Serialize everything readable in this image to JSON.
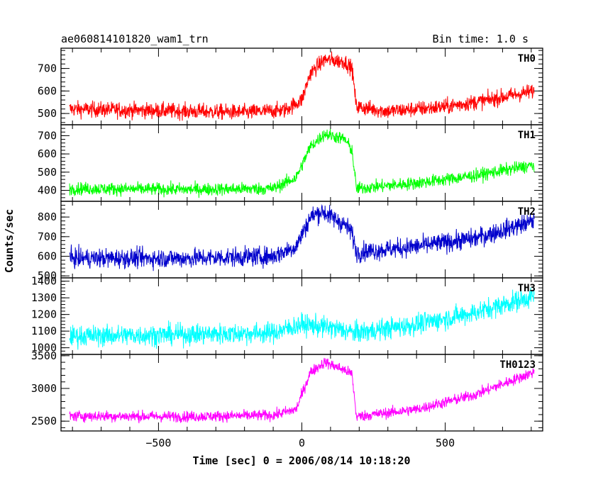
{
  "chart_data": {
    "type": "line",
    "title": "ae060814101820_wam1_trn",
    "bin_time_label": "Bin time: 1.0 s",
    "xlabel": "Time [sec] 0 = 2006/08/14 10:18:20",
    "ylabel": "Counts/sec",
    "xlim": [
      -840,
      840
    ],
    "x_ticks": [
      -500,
      0,
      500
    ],
    "x_tick_labels": [
      "−500",
      "0",
      "500"
    ],
    "grid": false,
    "panels": [
      {
        "name": "TH0",
        "color": "#ff0000",
        "ylim": [
          450,
          790
        ],
        "y_ticks": [
          500,
          600,
          700
        ],
        "noise": 25,
        "series": [
          {
            "x": -810,
            "y": 520
          },
          {
            "x": -600,
            "y": 515
          },
          {
            "x": -400,
            "y": 510
          },
          {
            "x": -200,
            "y": 505
          },
          {
            "x": -60,
            "y": 515
          },
          {
            "x": 0,
            "y": 560
          },
          {
            "x": 30,
            "y": 680
          },
          {
            "x": 80,
            "y": 740
          },
          {
            "x": 150,
            "y": 730
          },
          {
            "x": 175,
            "y": 700
          },
          {
            "x": 190,
            "y": 530
          },
          {
            "x": 300,
            "y": 510
          },
          {
            "x": 500,
            "y": 530
          },
          {
            "x": 650,
            "y": 560
          },
          {
            "x": 810,
            "y": 600
          }
        ]
      },
      {
        "name": "TH1",
        "color": "#00ff00",
        "ylim": [
          340,
          760
        ],
        "y_ticks": [
          400,
          500,
          600,
          700
        ],
        "noise": 25,
        "series": [
          {
            "x": -810,
            "y": 410
          },
          {
            "x": -400,
            "y": 405
          },
          {
            "x": -100,
            "y": 410
          },
          {
            "x": -20,
            "y": 470
          },
          {
            "x": 30,
            "y": 640
          },
          {
            "x": 80,
            "y": 710
          },
          {
            "x": 150,
            "y": 680
          },
          {
            "x": 175,
            "y": 620
          },
          {
            "x": 190,
            "y": 410
          },
          {
            "x": 400,
            "y": 440
          },
          {
            "x": 600,
            "y": 480
          },
          {
            "x": 810,
            "y": 540
          }
        ]
      },
      {
        "name": "TH2",
        "color": "#0000cc",
        "ylim": [
          490,
          880
        ],
        "y_ticks": [
          500,
          600,
          700,
          800
        ],
        "noise": 35,
        "series": [
          {
            "x": -810,
            "y": 590
          },
          {
            "x": -400,
            "y": 590
          },
          {
            "x": -100,
            "y": 600
          },
          {
            "x": -20,
            "y": 650
          },
          {
            "x": 30,
            "y": 800
          },
          {
            "x": 70,
            "y": 830
          },
          {
            "x": 150,
            "y": 760
          },
          {
            "x": 175,
            "y": 720
          },
          {
            "x": 190,
            "y": 620
          },
          {
            "x": 400,
            "y": 650
          },
          {
            "x": 600,
            "y": 690
          },
          {
            "x": 810,
            "y": 780
          }
        ]
      },
      {
        "name": "TH3",
        "color": "#00ffff",
        "ylim": [
          960,
          1420
        ],
        "y_ticks": [
          1000,
          1100,
          1200,
          1300,
          1400
        ],
        "noise": 45,
        "series": [
          {
            "x": -810,
            "y": 1070
          },
          {
            "x": -400,
            "y": 1080
          },
          {
            "x": -100,
            "y": 1090
          },
          {
            "x": 0,
            "y": 1140
          },
          {
            "x": 100,
            "y": 1120
          },
          {
            "x": 190,
            "y": 1090
          },
          {
            "x": 400,
            "y": 1140
          },
          {
            "x": 600,
            "y": 1210
          },
          {
            "x": 810,
            "y": 1310
          }
        ]
      },
      {
        "name": "TH0123",
        "color": "#ff00ff",
        "ylim": [
          2350,
          3520
        ],
        "y_ticks": [
          2500,
          3000,
          3500
        ],
        "noise": 60,
        "series": [
          {
            "x": -810,
            "y": 2580
          },
          {
            "x": -400,
            "y": 2570
          },
          {
            "x": -100,
            "y": 2590
          },
          {
            "x": -20,
            "y": 2680
          },
          {
            "x": 30,
            "y": 3250
          },
          {
            "x": 80,
            "y": 3400
          },
          {
            "x": 150,
            "y": 3280
          },
          {
            "x": 175,
            "y": 3220
          },
          {
            "x": 190,
            "y": 2570
          },
          {
            "x": 400,
            "y": 2680
          },
          {
            "x": 600,
            "y": 2900
          },
          {
            "x": 810,
            "y": 3250
          }
        ]
      }
    ]
  }
}
